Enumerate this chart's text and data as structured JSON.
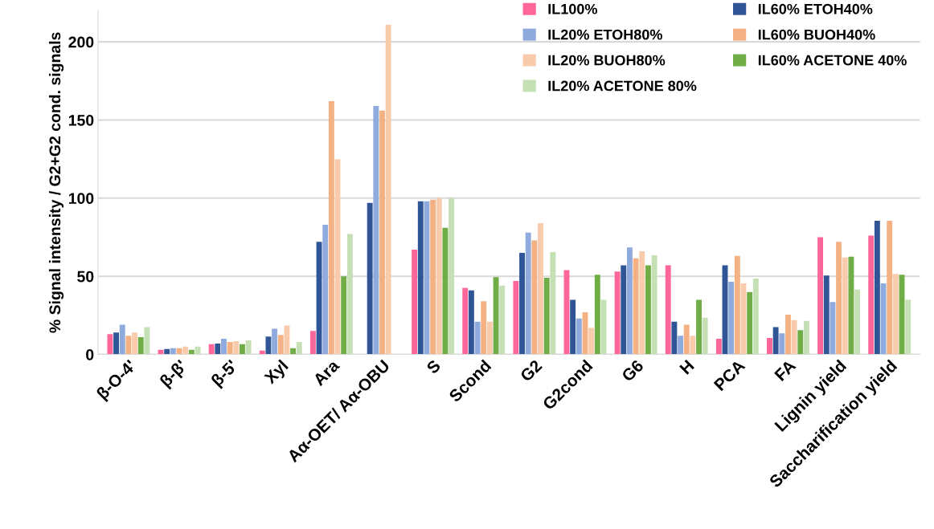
{
  "chart_data": {
    "type": "bar",
    "ylabel": "% Signal intensity / G2+G2 cond. signals",
    "categories": [
      "β-O-4'",
      "β-β'",
      "β-5'",
      "Xyl",
      "Ara",
      "Aα-OET/ Aα-OBU",
      "S",
      "Scond",
      "G2",
      "G2cond",
      "G6",
      "H",
      "PCA",
      "FA",
      "Lignin yield",
      "Saccharification yield"
    ],
    "series": [
      {
        "name": "IL100%",
        "color": "#ff6699",
        "values": [
          13,
          3,
          6.5,
          2.5,
          15,
          null,
          67,
          42.5,
          47,
          54,
          53,
          57,
          10,
          10.5,
          75,
          76
        ]
      },
      {
        "name": "IL60% ETOH40%",
        "color": "#2f5597",
        "values": [
          14,
          3.5,
          7,
          11.5,
          72,
          97,
          98,
          41,
          65,
          35,
          57,
          21,
          57,
          17.5,
          50.5,
          85.5
        ]
      },
      {
        "name": "IL20% ETOH80%",
        "color": "#8faadc",
        "values": [
          19,
          4,
          10,
          16.5,
          83,
          159,
          98,
          21,
          78,
          23,
          68.5,
          12,
          46.5,
          13.5,
          33.5,
          45.5
        ]
      },
      {
        "name": "IL60% BUOH40%",
        "color": "#f4b183",
        "values": [
          12,
          4,
          8,
          12.5,
          162,
          156,
          99,
          34,
          73,
          27,
          61.5,
          19,
          63,
          25.5,
          72,
          85.5
        ]
      },
      {
        "name": "IL20% BUOH80%",
        "color": "#f8cbad",
        "values": [
          14,
          5,
          8.5,
          18.5,
          125,
          211,
          100,
          21,
          84,
          17,
          66,
          12,
          45.5,
          22,
          62,
          51.5
        ]
      },
      {
        "name": "IL60% ACETONE 40%",
        "color": "#70ad47",
        "values": [
          11,
          3,
          6.5,
          4,
          50,
          null,
          81,
          49.5,
          49,
          51,
          57,
          35,
          40,
          15.5,
          62.5,
          51
        ]
      },
      {
        "name": "IL20% ACETONE 80%",
        "color": "#c5e0b4",
        "values": [
          17.5,
          5,
          9,
          8,
          77,
          null,
          100,
          44,
          65.5,
          35,
          63.5,
          23.5,
          48.5,
          21.5,
          41.5,
          35
        ]
      }
    ],
    "ylim": [
      0,
      220
    ],
    "yticks": [
      0,
      50,
      100,
      150,
      200
    ],
    "grid": "y",
    "legend": "top right"
  }
}
